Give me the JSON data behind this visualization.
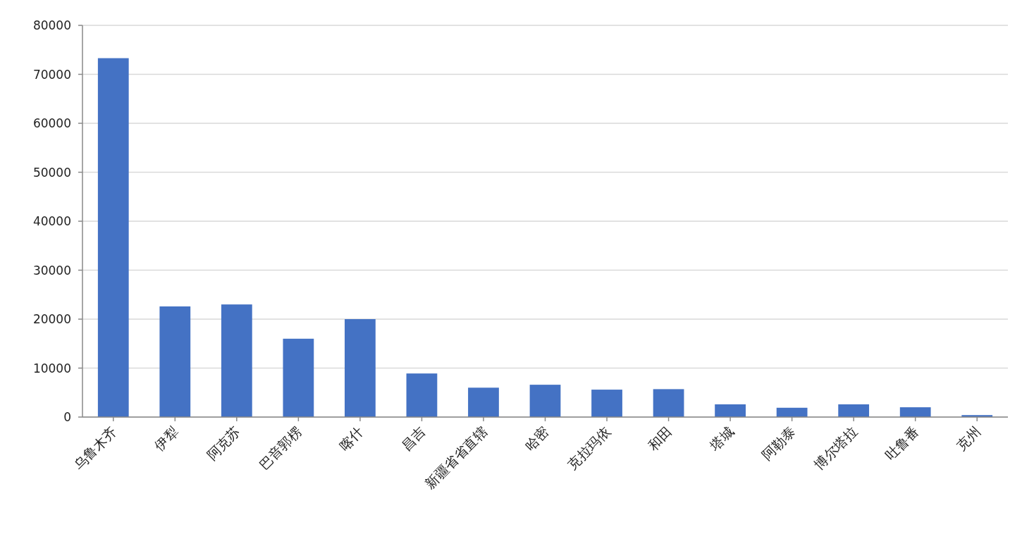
{
  "chart_data": {
    "type": "bar",
    "categories": [
      "乌鲁木齐",
      "伊犁",
      "阿克苏",
      "巴音郭楞",
      "喀什",
      "昌吉",
      "新疆省省直辖",
      "哈密",
      "克拉玛依",
      "和田",
      "塔城",
      "阿勒泰",
      "博尔塔拉",
      "吐鲁番",
      "克州"
    ],
    "values": [
      73300,
      22600,
      23000,
      16000,
      20000,
      8900,
      6000,
      6600,
      5600,
      5700,
      2600,
      1900,
      2600,
      2000,
      400
    ],
    "color": "#4472c4",
    "ylim": [
      0,
      80000
    ],
    "yticks": [
      0,
      10000,
      20000,
      30000,
      40000,
      50000,
      60000,
      70000,
      80000
    ],
    "grid": "y"
  }
}
